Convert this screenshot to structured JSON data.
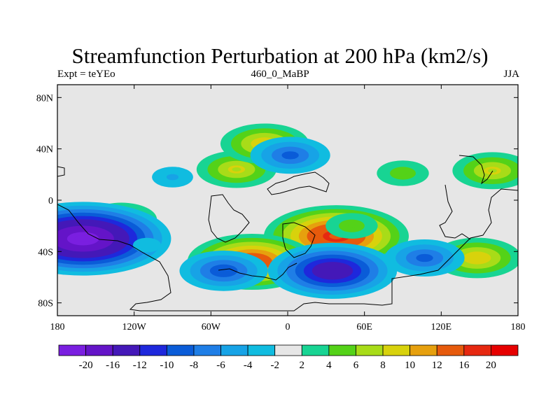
{
  "chart_data": {
    "type": "contour-map",
    "title": "Streamfunction Perturbation at 200 hPa (km2/s)",
    "left_string": "Expt = teYEo",
    "center_string": "460_0_MaBP",
    "right_string": "JJA",
    "x_ticks": [
      {
        "value": -180,
        "label": "180"
      },
      {
        "value": -120,
        "label": "120W"
      },
      {
        "value": -60,
        "label": "60W"
      },
      {
        "value": 0,
        "label": "0"
      },
      {
        "value": 60,
        "label": "60E"
      },
      {
        "value": 120,
        "label": "120E"
      },
      {
        "value": 180,
        "label": "180"
      }
    ],
    "y_ticks": [
      {
        "value": 80,
        "label": "80N"
      },
      {
        "value": 40,
        "label": "40N"
      },
      {
        "value": 0,
        "label": "0"
      },
      {
        "value": -40,
        "label": "40S"
      },
      {
        "value": -80,
        "label": "80S"
      }
    ],
    "xlim": [
      -180,
      180
    ],
    "ylim": [
      -90,
      90
    ],
    "colorbar": {
      "levels": [
        -20,
        -16,
        -12,
        -10,
        -8,
        -6,
        -4,
        -2,
        2,
        4,
        6,
        8,
        10,
        12,
        16,
        20
      ],
      "colors": [
        "#7a1fe0",
        "#6414c8",
        "#4418b8",
        "#1e28dc",
        "#0a5cd8",
        "#1f7ee6",
        "#17a3e6",
        "#10bce0",
        "#e6e6e6",
        "#18d493",
        "#54d218",
        "#a8dc18",
        "#d8d20c",
        "#e6a00e",
        "#e65a0c",
        "#e62810",
        "#e60000"
      ]
    },
    "features": [
      {
        "lon": 38,
        "lat": -28,
        "value": 16
      },
      {
        "lon": -28,
        "lat": -48,
        "value": 14
      },
      {
        "lon": 148,
        "lat": -45,
        "value": 9
      },
      {
        "lon": 160,
        "lat": 23,
        "value": 8
      },
      {
        "lon": -40,
        "lat": 24,
        "value": 8
      },
      {
        "lon": -130,
        "lat": -15,
        "value": 7
      },
      {
        "lon": 90,
        "lat": 21,
        "value": 5
      },
      {
        "lon": 50,
        "lat": -20,
        "value": 5
      },
      {
        "lon": -18,
        "lat": 44,
        "value": 9
      },
      {
        "lon": -160,
        "lat": -30,
        "value": -20
      },
      {
        "lon": 35,
        "lat": -55,
        "value": -14
      },
      {
        "lon": 107,
        "lat": -45,
        "value": -8
      },
      {
        "lon": -50,
        "lat": -55,
        "value": -9
      },
      {
        "lon": 2,
        "lat": 35,
        "value": -8
      },
      {
        "lon": -90,
        "lat": 18,
        "value": -4
      },
      {
        "lon": -110,
        "lat": -35,
        "value": -3
      }
    ]
  }
}
